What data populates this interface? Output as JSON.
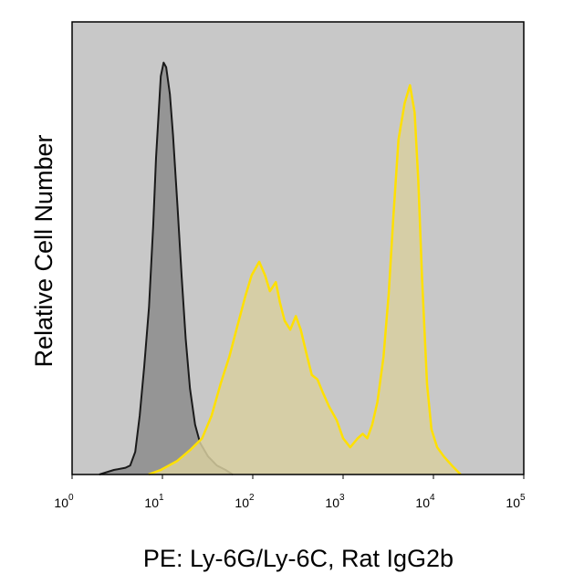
{
  "chart_data": {
    "type": "area",
    "xlabel": "PE: Ly-6G/Ly-6C, Rat IgG2b",
    "ylabel": "Relative Cell Number",
    "x_scale": "log",
    "xlim": [
      1,
      100000
    ],
    "ylim": [
      0,
      100
    ],
    "grid": false,
    "legend": "none",
    "tick_labels": [
      {
        "base": "10",
        "exp": "0",
        "value": 1
      },
      {
        "base": "10",
        "exp": "1",
        "value": 10
      },
      {
        "base": "10",
        "exp": "2",
        "value": 100
      },
      {
        "base": "10",
        "exp": "3",
        "value": 1000
      },
      {
        "base": "10",
        "exp": "4",
        "value": 10000
      },
      {
        "base": "10",
        "exp": "5",
        "value": 100000
      }
    ],
    "colors": {
      "plot_background": "#c8c8c8",
      "isotype_line": "#1a1a1a",
      "isotype_fill": "#8c8c8c",
      "stained_line": "#ffe000",
      "stained_fill": "#d8cfa0"
    },
    "series": [
      {
        "id": "isotype",
        "points": [
          [
            2.0,
            0
          ],
          [
            2.9,
            1
          ],
          [
            3.9,
            1.5
          ],
          [
            4.4,
            2
          ],
          [
            5.0,
            5
          ],
          [
            5.6,
            13
          ],
          [
            6.3,
            24
          ],
          [
            7.1,
            37
          ],
          [
            7.9,
            55
          ],
          [
            8.5,
            70
          ],
          [
            9.1,
            80
          ],
          [
            9.6,
            88
          ],
          [
            10.3,
            91
          ],
          [
            11.0,
            90
          ],
          [
            12.1,
            84
          ],
          [
            13.1,
            75
          ],
          [
            14.7,
            59
          ],
          [
            16.3,
            44
          ],
          [
            18.1,
            30
          ],
          [
            20.2,
            19
          ],
          [
            23.0,
            11
          ],
          [
            26.1,
            7
          ],
          [
            32.0,
            4
          ],
          [
            40.0,
            2
          ],
          [
            50.0,
            1
          ],
          [
            60.0,
            0
          ]
        ]
      },
      {
        "id": "stained",
        "points": [
          [
            7.0,
            0
          ],
          [
            9.6,
            1
          ],
          [
            14.6,
            3
          ],
          [
            20.5,
            5.5
          ],
          [
            27.5,
            8
          ],
          [
            35.0,
            13
          ],
          [
            44.0,
            20
          ],
          [
            55.0,
            26
          ],
          [
            68.0,
            33
          ],
          [
            83.0,
            39.5
          ],
          [
            97.0,
            44
          ],
          [
            118.0,
            47
          ],
          [
            137.0,
            44
          ],
          [
            155.0,
            40.5
          ],
          [
            180.0,
            42.5
          ],
          [
            200.0,
            38
          ],
          [
            225.0,
            34
          ],
          [
            260.0,
            32
          ],
          [
            300.0,
            35
          ],
          [
            340.0,
            32
          ],
          [
            390.0,
            27
          ],
          [
            450.0,
            22
          ],
          [
            520.0,
            21
          ],
          [
            600.0,
            18
          ],
          [
            700.0,
            15
          ],
          [
            850.0,
            12
          ],
          [
            1000.0,
            8
          ],
          [
            1200.0,
            6
          ],
          [
            1450.0,
            8
          ],
          [
            1650.0,
            9
          ],
          [
            1850.0,
            8
          ],
          [
            2100.0,
            11
          ],
          [
            2400.0,
            16
          ],
          [
            2800.0,
            26
          ],
          [
            3200.0,
            40
          ],
          [
            3600.0,
            57
          ],
          [
            4100.0,
            74
          ],
          [
            4800.0,
            82
          ],
          [
            5500.0,
            86
          ],
          [
            6200.0,
            80
          ],
          [
            6800.0,
            65
          ],
          [
            7500.0,
            43
          ],
          [
            8500.0,
            20
          ],
          [
            9500.0,
            10
          ],
          [
            11000.0,
            6
          ],
          [
            13000.0,
            4
          ],
          [
            16000.0,
            2
          ],
          [
            20000.0,
            0
          ]
        ]
      }
    ]
  }
}
